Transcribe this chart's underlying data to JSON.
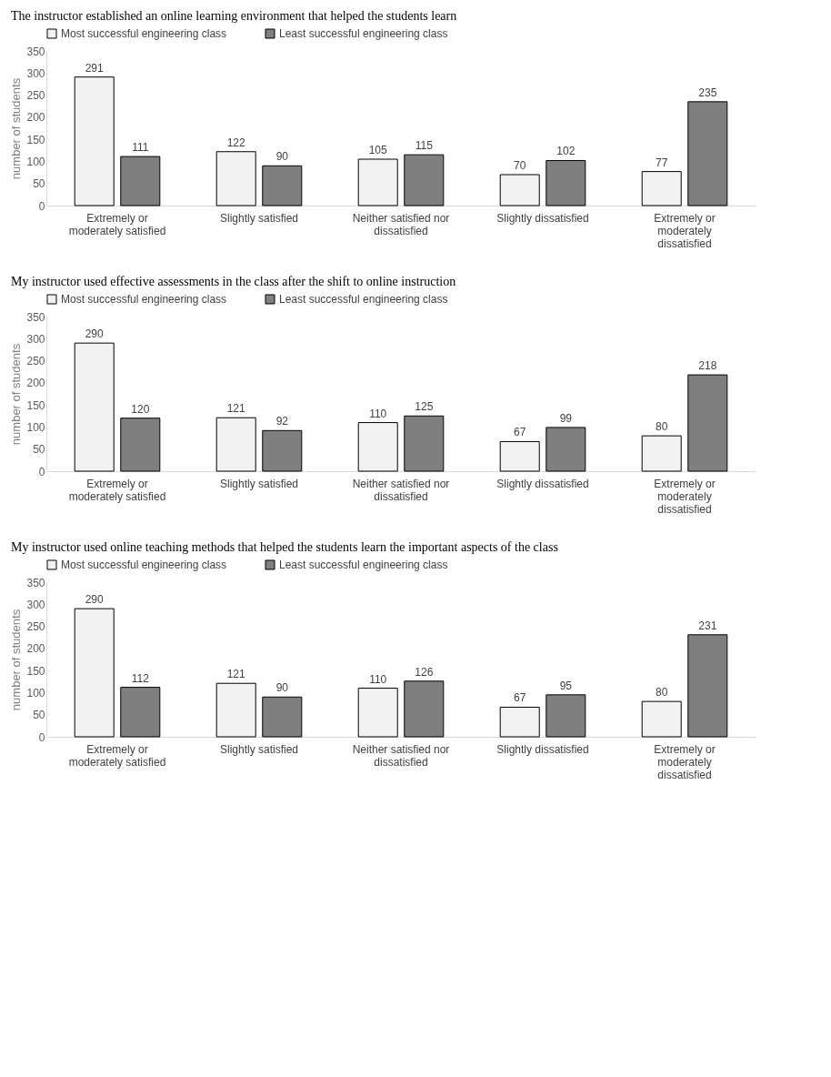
{
  "chart_data": [
    {
      "type": "bar",
      "title": "The instructor established an online learning environment that helped the students learn",
      "ylabel": "number of students",
      "categories": [
        "Extremely or moderately satisfied",
        "Slightly satisfied",
        "Neither satisfied nor dissatisfied",
        "Slightly dissatisfied",
        "Extremely or moderately dissatisfied"
      ],
      "series": [
        {
          "name": "Most successful engineering class",
          "color": "#f2f2f2",
          "values": [
            291,
            122,
            105,
            70,
            77
          ]
        },
        {
          "name": "Least successful engineering class",
          "color": "#7f7f7f",
          "values": [
            111,
            90,
            115,
            102,
            235
          ]
        }
      ],
      "ylim": [
        0,
        350
      ],
      "yticks": [
        0,
        50,
        100,
        150,
        200,
        250,
        300,
        350
      ],
      "legend": "top",
      "data_labels": true
    },
    {
      "type": "bar",
      "title": "My instructor used effective assessments in the class after the shift to online instruction",
      "ylabel": "number of students",
      "categories": [
        "Extremely or moderately satisfied",
        "Slightly satisfied",
        "Neither satisfied nor dissatisfied",
        "Slightly dissatisfied",
        "Extremely or moderately dissatisfied"
      ],
      "series": [
        {
          "name": "Most successful engineering class",
          "color": "#f2f2f2",
          "values": [
            290,
            121,
            110,
            67,
            80
          ]
        },
        {
          "name": "Least successful engineering class",
          "color": "#7f7f7f",
          "values": [
            120,
            92,
            125,
            99,
            218
          ]
        }
      ],
      "ylim": [
        0,
        350
      ],
      "yticks": [
        0,
        50,
        100,
        150,
        200,
        250,
        300,
        350
      ],
      "legend": "top",
      "data_labels": true
    },
    {
      "type": "bar",
      "title": "My instructor used online teaching methods that helped the students learn the important aspects of the class",
      "ylabel": "number of students",
      "categories": [
        "Extremely or moderately satisfied",
        "Slightly satisfied",
        "Neither satisfied nor dissatisfied",
        "Slightly dissatisfied",
        "Extremely or moderately dissatisfied"
      ],
      "series": [
        {
          "name": "Most successful engineering class",
          "color": "#f2f2f2",
          "values": [
            290,
            121,
            110,
            67,
            80
          ]
        },
        {
          "name": "Least successful engineering class",
          "color": "#7f7f7f",
          "values": [
            112,
            90,
            126,
            95,
            231
          ]
        }
      ],
      "ylim": [
        0,
        350
      ],
      "yticks": [
        0,
        50,
        100,
        150,
        200,
        250,
        300,
        350
      ],
      "legend": "top",
      "data_labels": true
    }
  ]
}
